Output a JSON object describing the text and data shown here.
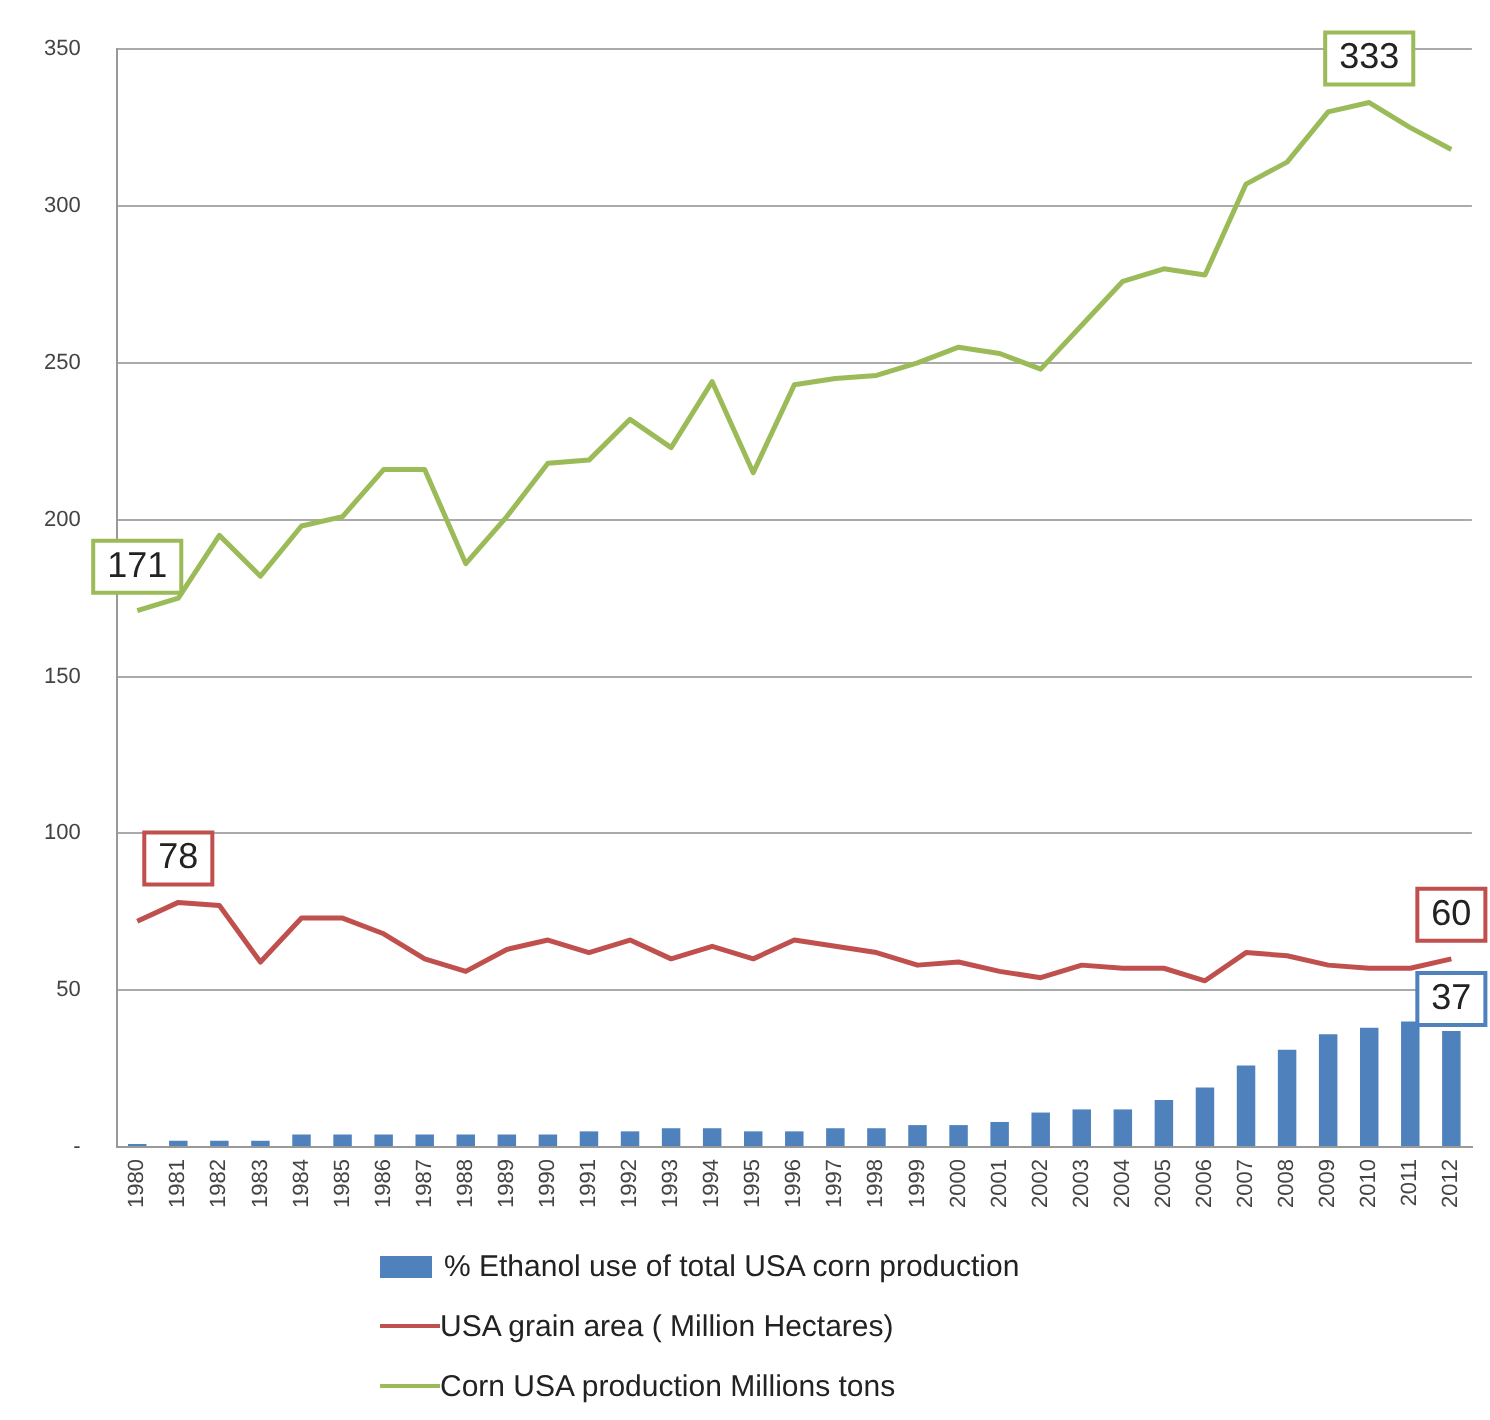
{
  "chart_data": {
    "type": "bar",
    "categories": [
      "1980",
      "1981",
      "1982",
      "1983",
      "1984",
      "1985",
      "1986",
      "1987",
      "1988",
      "1989",
      "1990",
      "1991",
      "1992",
      "1993",
      "1994",
      "1995",
      "1996",
      "1997",
      "1998",
      "1999",
      "2000",
      "2001",
      "2002",
      "2003",
      "2004",
      "2005",
      "2006",
      "2007",
      "2008",
      "2009",
      "2010",
      "2011",
      "2012"
    ],
    "series": [
      {
        "name": "%  Ethanol use of total USA corn  production",
        "color": "#4f81bd",
        "values": [
          1,
          2,
          2,
          2,
          4,
          4,
          4,
          4,
          4,
          4,
          4,
          5,
          5,
          6,
          6,
          5,
          5,
          6,
          6,
          7,
          7,
          8,
          11,
          12,
          12,
          15,
          19,
          26,
          31,
          36,
          38,
          40,
          37
        ]
      },
      {
        "name": "USA grain area ( Million Hectares)",
        "type": "line",
        "color": "#c0504d",
        "values": [
          72,
          78,
          77,
          59,
          73,
          73,
          68,
          60,
          56,
          63,
          66,
          62,
          66,
          60,
          64,
          60,
          66,
          64,
          62,
          58,
          59,
          56,
          54,
          58,
          57,
          57,
          53,
          62,
          61,
          58,
          57,
          57,
          60
        ]
      },
      {
        "name": "Corn USA production Millions tons",
        "type": "line",
        "color": "#9bbb59",
        "values": [
          171,
          175,
          195,
          182,
          198,
          201,
          216,
          216,
          186,
          201,
          218,
          219,
          232,
          223,
          244,
          215,
          243,
          245,
          246,
          250,
          255,
          253,
          248,
          262,
          276,
          280,
          278,
          307,
          314,
          330,
          333,
          325,
          318
        ]
      }
    ],
    "ylim": [
      0,
      350
    ],
    "yticks": [
      {
        "value": 0,
        "label": "-"
      },
      50,
      100,
      150,
      200,
      250,
      300,
      350
    ],
    "grid": "y",
    "legend": "bottom",
    "marker": "none",
    "line_style": "solid",
    "annotations": [
      {
        "text": "171",
        "x": "1980",
        "y": 171
      },
      {
        "text": "333",
        "x": "2010",
        "y": 333
      },
      {
        "text": "78",
        "x": "1981",
        "y": 78
      },
      {
        "text": "60",
        "x": "2012",
        "y": 60
      },
      {
        "text": "37",
        "x": "2012",
        "y": 37
      }
    ]
  }
}
